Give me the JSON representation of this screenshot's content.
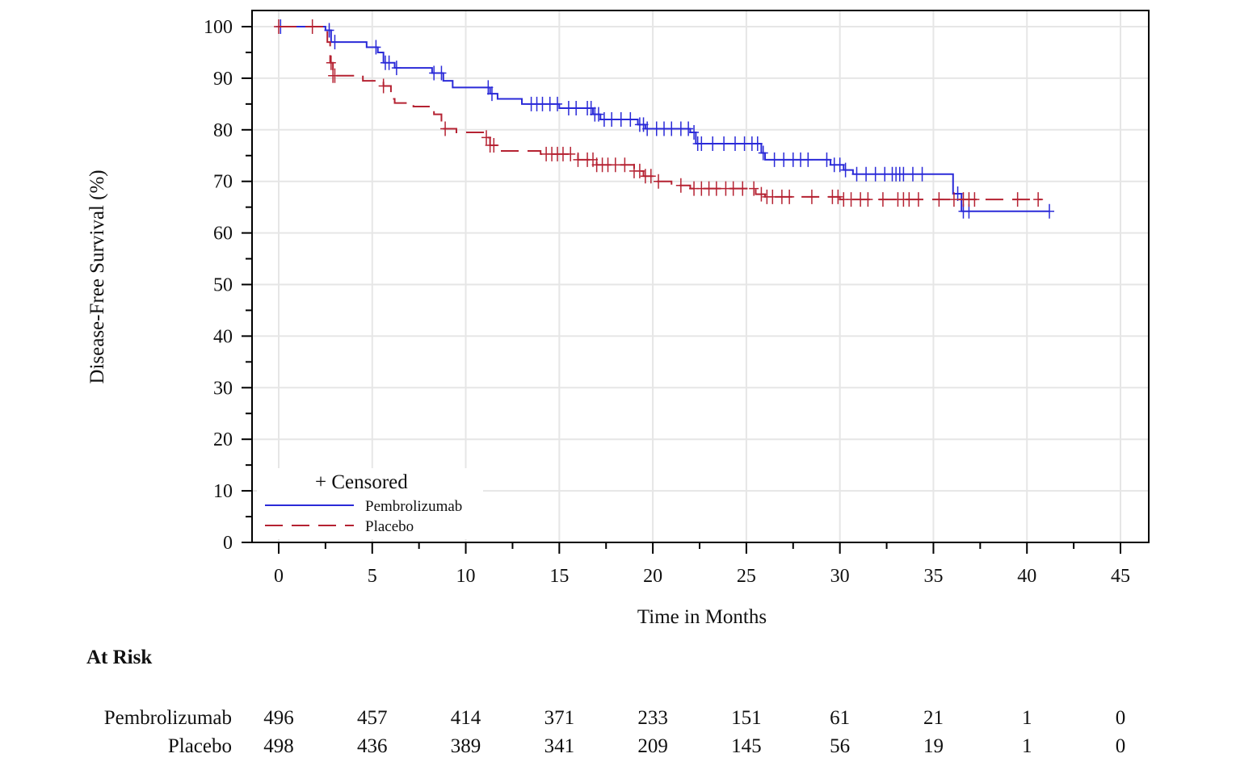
{
  "chart_data": {
    "type": "line",
    "title": "",
    "xlabel": "Time in Months",
    "ylabel": "Disease-Free Survival (%)",
    "xlim": [
      -1.5,
      46.5
    ],
    "ylim": [
      -3,
      103
    ],
    "xticks": [
      0,
      5,
      10,
      15,
      20,
      25,
      30,
      35,
      40,
      45
    ],
    "yticks": [
      0,
      10,
      20,
      30,
      40,
      50,
      60,
      70,
      80,
      90,
      100
    ],
    "grid": true,
    "legend_position": "bottom-left",
    "censored_label": "+ Censored",
    "series": [
      {
        "name": "Pembrolizumab",
        "color": "#2a2ad8",
        "style": "solid",
        "steps": [
          [
            0,
            100
          ],
          [
            2.5,
            99.3
          ],
          [
            2.8,
            97
          ],
          [
            4.7,
            96
          ],
          [
            5.3,
            95
          ],
          [
            5.6,
            93
          ],
          [
            6.2,
            92
          ],
          [
            8.2,
            91
          ],
          [
            8.8,
            89.5
          ],
          [
            9.3,
            88.2
          ],
          [
            11.3,
            87
          ],
          [
            11.7,
            86
          ],
          [
            13,
            85
          ],
          [
            15,
            84.2
          ],
          [
            16.8,
            83
          ],
          [
            17.2,
            82
          ],
          [
            19.2,
            81
          ],
          [
            19.6,
            80.2
          ],
          [
            22,
            79.5
          ],
          [
            22.3,
            77.3
          ],
          [
            25.8,
            75.5
          ],
          [
            26,
            74.2
          ],
          [
            29.5,
            73.2
          ],
          [
            30.2,
            72.2
          ],
          [
            30.7,
            71.4
          ],
          [
            36.05,
            67.6
          ],
          [
            36.5,
            64.2
          ],
          [
            41.2,
            64.2
          ]
        ],
        "censored": [
          0.1,
          2.7,
          3,
          5.2,
          5.7,
          5.9,
          6.3,
          8.3,
          8.7,
          11.2,
          11.4,
          13.5,
          13.8,
          14.1,
          14.5,
          14.9,
          15.5,
          15.9,
          16.5,
          16.7,
          16.9,
          17.1,
          17.4,
          17.8,
          18.3,
          18.8,
          19.3,
          19.5,
          19.7,
          20.2,
          20.6,
          21,
          21.5,
          21.9,
          22.2,
          22.4,
          22.6,
          23.2,
          23.8,
          24.4,
          24.9,
          25.3,
          25.6,
          25.9,
          26.5,
          27,
          27.5,
          27.9,
          28.3,
          29.3,
          29.7,
          30,
          30.3,
          30.9,
          31.4,
          31.9,
          32.4,
          32.8,
          33,
          33.2,
          33.4,
          33.9,
          34.4,
          36.3,
          36.6,
          36.9,
          41.2
        ]
      },
      {
        "name": "Placebo",
        "color": "#b52232",
        "style": "dashed",
        "steps": [
          [
            0,
            100
          ],
          [
            2.5,
            99.3
          ],
          [
            2.6,
            97
          ],
          [
            2.75,
            93
          ],
          [
            2.9,
            90.5
          ],
          [
            4.5,
            89.5
          ],
          [
            5.6,
            88.5
          ],
          [
            6,
            86
          ],
          [
            6.2,
            85.2
          ],
          [
            7.2,
            84.5
          ],
          [
            8.3,
            83
          ],
          [
            8.7,
            80.2
          ],
          [
            9.5,
            79.5
          ],
          [
            11,
            78.5
          ],
          [
            11.3,
            77
          ],
          [
            11.8,
            75.9
          ],
          [
            14,
            75.3
          ],
          [
            16,
            74.2
          ],
          [
            17,
            73.2
          ],
          [
            19,
            72
          ],
          [
            19.5,
            71
          ],
          [
            20.2,
            70
          ],
          [
            21,
            69.2
          ],
          [
            22,
            68.6
          ],
          [
            25.5,
            67.5
          ],
          [
            26,
            67
          ],
          [
            30,
            66.5
          ],
          [
            40.8,
            66.5
          ]
        ],
        "censored": [
          0,
          1.8,
          2.8,
          2.9,
          3,
          5.6,
          8.9,
          11.1,
          11.3,
          11.5,
          14.3,
          14.6,
          14.9,
          15.2,
          15.6,
          16,
          16.5,
          16.8,
          17,
          17.3,
          17.6,
          18,
          18.5,
          19,
          19.3,
          19.6,
          19.9,
          20.3,
          21.5,
          22.2,
          22.6,
          23,
          23.4,
          23.9,
          24.3,
          24.8,
          25.4,
          25.8,
          26.1,
          26.4,
          26.9,
          27.3,
          28.5,
          29.6,
          29.9,
          30.2,
          30.6,
          31.1,
          31.5,
          32.3,
          33.1,
          33.4,
          33.7,
          34.2,
          35.3,
          36.1,
          36.6,
          36.9,
          37.2,
          39.5,
          40.6
        ]
      }
    ],
    "at_risk": {
      "title": "At Risk",
      "times": [
        0,
        5,
        10,
        15,
        20,
        25,
        30,
        35,
        40,
        45
      ],
      "rows": [
        {
          "label": "Pembrolizumab",
          "values": [
            496,
            457,
            414,
            371,
            233,
            151,
            61,
            21,
            1,
            0
          ]
        },
        {
          "label": "Placebo",
          "values": [
            498,
            436,
            389,
            341,
            209,
            145,
            56,
            19,
            1,
            0
          ]
        }
      ]
    }
  }
}
